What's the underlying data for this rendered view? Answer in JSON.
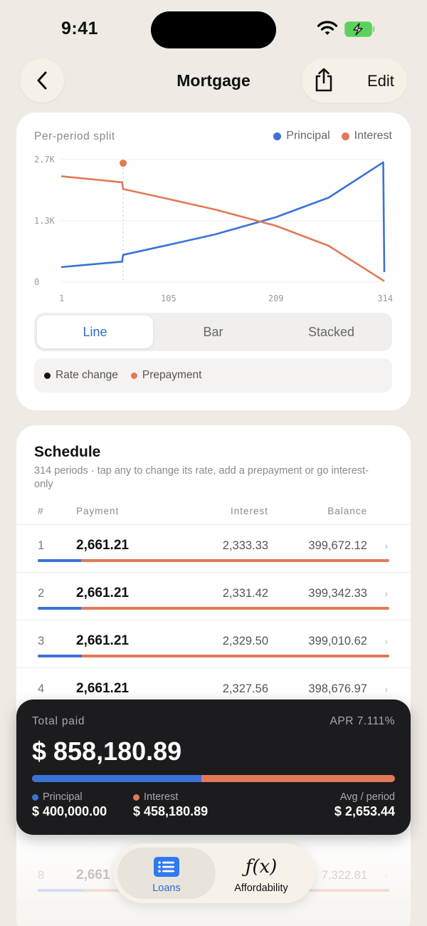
{
  "status": {
    "time": "9:41"
  },
  "nav": {
    "title": "Mortgage",
    "edit_label": "Edit"
  },
  "chart": {
    "heading": "Per-period split",
    "legend": {
      "principal": "Principal",
      "interest": "Interest"
    },
    "view_tabs": [
      "Line",
      "Bar",
      "Stacked"
    ],
    "active_view": "Line",
    "events": {
      "rate_change": "Rate change",
      "prepayment": "Prepayment"
    }
  },
  "chart_data": {
    "type": "line",
    "title": "Per-period split",
    "x_ticks": [
      1,
      105,
      209,
      314
    ],
    "y_ticks": [
      "0",
      "1.3K",
      "2.7K"
    ],
    "xlim": [
      1,
      314
    ],
    "ylim": [
      0,
      2700
    ],
    "series": [
      {
        "name": "Principal",
        "x": [
          1,
          60,
          61,
          105,
          150,
          209,
          260,
          313,
          314
        ],
        "values": [
          330,
          450,
          600,
          820,
          1050,
          1430,
          1860,
          2640,
          220
        ]
      },
      {
        "name": "Interest",
        "x": [
          1,
          60,
          61,
          105,
          150,
          209,
          260,
          314
        ],
        "values": [
          2333,
          2200,
          2050,
          1830,
          1600,
          1240,
          800,
          20
        ]
      }
    ],
    "markers": [
      {
        "type": "Prepayment",
        "x": 61,
        "y": 2620
      }
    ],
    "colors": {
      "principal": "#3a72d8",
      "interest": "#e07a56"
    }
  },
  "schedule": {
    "title": "Schedule",
    "subtitle": "314 periods · tap any to change its rate, add a prepayment or go interest-only",
    "columns": [
      "#",
      "Payment",
      "Interest",
      "Balance"
    ],
    "rows": [
      {
        "n": "1",
        "payment": "2,661.21",
        "interest": "2,333.33",
        "balance": "399,672.12",
        "principal_share": 0.123
      },
      {
        "n": "2",
        "payment": "2,661.21",
        "interest": "2,331.42",
        "balance": "399,342.33",
        "principal_share": 0.124
      },
      {
        "n": "3",
        "payment": "2,661.21",
        "interest": "2,329.50",
        "balance": "399,010.62",
        "principal_share": 0.125
      },
      {
        "n": "4",
        "payment": "2,661.21",
        "interest": "2,327.56",
        "balance": "398,676.97",
        "principal_share": 0.125
      },
      {
        "n": "8",
        "payment": "2,661",
        "interest": "",
        "balance": "7,322.81",
        "principal_share": 0.13
      }
    ]
  },
  "totals": {
    "label": "Total paid",
    "apr": "APR 7.111%",
    "amount": "$ 858,180.89",
    "principal_fraction": 0.466,
    "principal_label": "Principal",
    "principal_value": "$ 400,000.00",
    "interest_label": "Interest",
    "interest_value": "$ 458,180.89",
    "avg_label": "Avg / period",
    "avg_value": "$ 2,653.44"
  },
  "tabbar": {
    "loans": "Loans",
    "affordability": "Affordability",
    "affordability_icon_text": "ƒ(x)"
  }
}
